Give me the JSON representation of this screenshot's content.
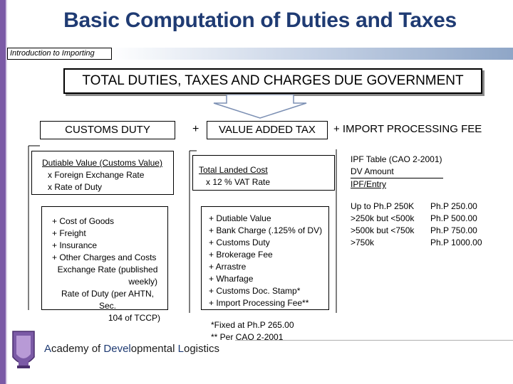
{
  "title": "Basic Computation of Duties and Taxes",
  "subtitle": "Introduction to Importing",
  "header": "TOTAL DUTIES, TAXES AND CHARGES DUE GOVERNMENT",
  "columns": {
    "customs_duty": "CUSTOMS DUTY",
    "plus_sign": "+",
    "vat": "VALUE ADDED TAX",
    "ipf": "+ IMPORT PROCESSING FEE"
  },
  "customs_box1": {
    "heading": "Dutiable Value (Customs Value)",
    "lines": [
      "x Foreign Exchange Rate",
      "x Rate of Duty"
    ]
  },
  "customs_box2": {
    "lines": [
      "+ Cost of Goods",
      "+ Freight",
      "+ Insurance",
      "+ Other Charges and Costs",
      "Exchange Rate (published",
      "weekly)",
      "Rate of Duty (per AHTN, Sec.",
      "104 of TCCP)"
    ]
  },
  "vat_box1": {
    "heading": "Total Landed Cost",
    "line": "x 12 % VAT Rate"
  },
  "vat_box2": {
    "lines": [
      "+ Dutiable Value",
      "+ Bank Charge (.125% of DV)",
      "+ Customs Duty",
      "+ Brokerage Fee",
      "+ Arrastre",
      "+ Wharfage",
      "+ Customs Doc. Stamp*",
      "+ Import Processing Fee**"
    ]
  },
  "vat_notes": [
    "*Fixed at Ph.P 265.00",
    "** Per CAO 2-2001"
  ],
  "ipf_table": {
    "title": "IPF Table (CAO 2-2001)",
    "col1": "DV Amount",
    "col2": "IPF/Entry",
    "rows": [
      {
        "range": "Up to Ph.P 250K",
        "fee": "Ph.P 250.00"
      },
      {
        "range": ">250k but <500k",
        "fee": "Ph.P 500.00"
      },
      {
        "range": ">500k but <750k",
        "fee": "Ph.P 750.00"
      },
      {
        "range": ">750k",
        "fee": "Ph.P 1000.00"
      }
    ]
  },
  "footer": {
    "w1_cap": "A",
    "w1": "cademy ",
    "w2": "of ",
    "w3_cap": "Devel",
    "w3": "opmental ",
    "w4_cap": "L",
    "w4": "ogistics"
  },
  "colors": {
    "title": "#1f3b73",
    "accent_bar": "#7b5aa6"
  }
}
